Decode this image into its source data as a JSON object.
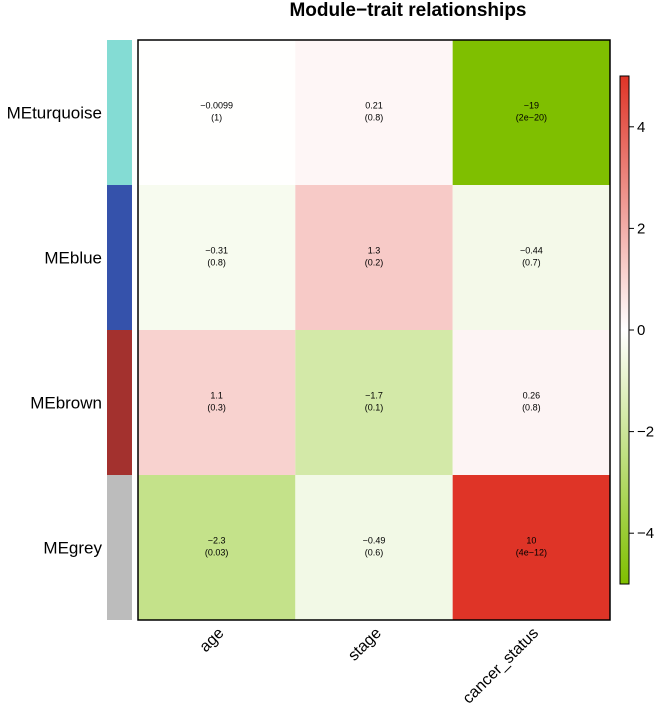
{
  "chart_data": {
    "type": "heatmap",
    "title": "Module−trait relationships",
    "rows": [
      {
        "label": "MEturquoise",
        "color": "#84dcd4"
      },
      {
        "label": "MEblue",
        "color": "#3552ab"
      },
      {
        "label": "MEbrown",
        "color": "#a3312e"
      },
      {
        "label": "MEgrey",
        "color": "#bcbcbc"
      }
    ],
    "columns": [
      "age",
      "stage",
      "cancer_status"
    ],
    "values": [
      [
        -0.0099,
        0.21,
        -19
      ],
      [
        -0.31,
        1.3,
        -0.44
      ],
      [
        1.1,
        -1.7,
        0.26
      ],
      [
        -2.3,
        -0.49,
        10
      ]
    ],
    "labels": [
      [
        "−0.0099",
        "0.21",
        "−19"
      ],
      [
        "−0.31",
        "1.3",
        "−0.44"
      ],
      [
        "1.1",
        "−1.7",
        "0.26"
      ],
      [
        "−2.3",
        "−0.49",
        "10"
      ]
    ],
    "pvalues": [
      [
        "(1)",
        "(0.8)",
        "(2e−20)"
      ],
      [
        "(0.8)",
        "(0.2)",
        "(0.7)"
      ],
      [
        "(0.3)",
        "(0.1)",
        "(0.8)"
      ],
      [
        "(0.03)",
        "(0.6)",
        "(4e−12)"
      ]
    ],
    "colorscale": {
      "range": [
        -5,
        5
      ],
      "low": "#7fbf00",
      "mid": "#ffffff",
      "high": "#df3427",
      "ticks": [
        -4,
        -2,
        0,
        2,
        4
      ],
      "tick_labels": [
        "−4",
        "−2",
        "0",
        "2",
        "4"
      ]
    }
  }
}
